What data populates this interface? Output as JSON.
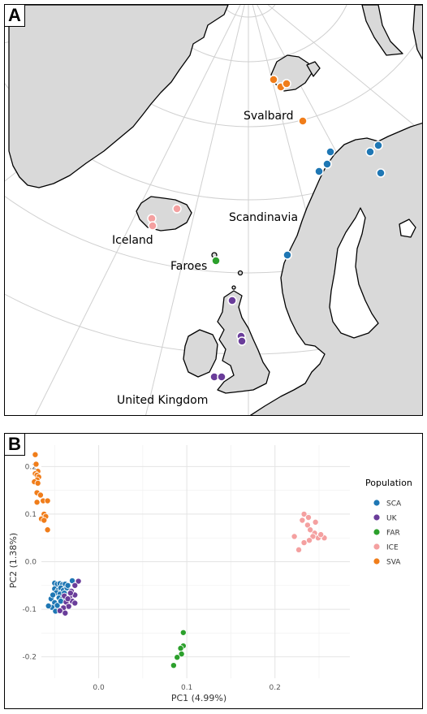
{
  "panel_a": {
    "tag": "A",
    "labels": {
      "svalbard": "Svalbard",
      "scandinavia": "Scandinavia",
      "iceland": "Iceland",
      "faroes": "Faroes",
      "uk": "United Kingdom"
    },
    "colors": {
      "land": "#d9d9d9",
      "sea": "#ffffff",
      "grid": "#d0d0d0",
      "coast": "#000000"
    }
  },
  "panel_b": {
    "tag": "B"
  },
  "chart_data": {
    "type": "scatter",
    "xlabel": "PC1 (4.99%)",
    "ylabel": "PC2 (1.38%)",
    "xlim": [
      -0.065,
      0.285
    ],
    "ylim": [
      -0.245,
      0.245
    ],
    "x_ticks": [
      0.0,
      0.1,
      0.2
    ],
    "x_tick_labels": [
      "0.0",
      "0.1",
      "0.2"
    ],
    "y_ticks": [
      -0.2,
      -0.1,
      0.0,
      0.1,
      0.2
    ],
    "y_tick_labels": [
      "-0.2",
      "-0.1",
      "0.0",
      "0.1",
      "0.2"
    ],
    "grid": true,
    "legend": {
      "title": "Population",
      "position": "right"
    },
    "series": [
      {
        "name": "SCA",
        "color": "#1f77b4",
        "points": [
          [
            -0.05,
            -0.045
          ],
          [
            -0.047,
            -0.047
          ],
          [
            -0.044,
            -0.046
          ],
          [
            -0.041,
            -0.048
          ],
          [
            -0.038,
            -0.047
          ],
          [
            -0.05,
            -0.057
          ],
          [
            -0.046,
            -0.06
          ],
          [
            -0.043,
            -0.055
          ],
          [
            -0.04,
            -0.06
          ],
          [
            -0.036,
            -0.055
          ],
          [
            -0.048,
            -0.065
          ],
          [
            -0.044,
            -0.068
          ],
          [
            -0.039,
            -0.066
          ],
          [
            -0.045,
            -0.076
          ],
          [
            -0.041,
            -0.078
          ],
          [
            -0.054,
            -0.078
          ],
          [
            -0.05,
            -0.086
          ],
          [
            -0.047,
            -0.092
          ],
          [
            -0.053,
            -0.096
          ],
          [
            -0.049,
            -0.104
          ],
          [
            -0.03,
            -0.04
          ],
          [
            -0.035,
            -0.05
          ],
          [
            -0.043,
            -0.083
          ],
          [
            -0.057,
            -0.093
          ],
          [
            -0.052,
            -0.07
          ]
        ]
      },
      {
        "name": "UK",
        "color": "#6a3d9a",
        "points": [
          [
            -0.023,
            -0.041
          ],
          [
            -0.027,
            -0.05
          ],
          [
            -0.031,
            -0.062
          ],
          [
            -0.027,
            -0.07
          ],
          [
            -0.033,
            -0.075
          ],
          [
            -0.03,
            -0.083
          ],
          [
            -0.037,
            -0.085
          ],
          [
            -0.027,
            -0.087
          ],
          [
            -0.034,
            -0.094
          ],
          [
            -0.04,
            -0.097
          ],
          [
            -0.044,
            -0.103
          ],
          [
            -0.038,
            -0.108
          ],
          [
            -0.032,
            -0.066
          ],
          [
            -0.039,
            -0.072
          ],
          [
            -0.035,
            -0.078
          ]
        ]
      },
      {
        "name": "FAR",
        "color": "#2ca02c",
        "points": [
          [
            0.096,
            -0.149
          ],
          [
            0.096,
            -0.177
          ],
          [
            0.093,
            -0.182
          ],
          [
            0.094,
            -0.194
          ],
          [
            0.089,
            -0.201
          ],
          [
            0.085,
            -0.218
          ]
        ]
      },
      {
        "name": "ICE",
        "color": "#f4a0a0",
        "points": [
          [
            0.233,
            0.1
          ],
          [
            0.238,
            0.093
          ],
          [
            0.231,
            0.087
          ],
          [
            0.237,
            0.077
          ],
          [
            0.246,
            0.083
          ],
          [
            0.256,
            0.05
          ],
          [
            0.249,
            0.05
          ],
          [
            0.252,
            0.057
          ],
          [
            0.245,
            0.06
          ],
          [
            0.24,
            0.067
          ],
          [
            0.243,
            0.053
          ],
          [
            0.233,
            0.04
          ],
          [
            0.239,
            0.045
          ],
          [
            0.222,
            0.053
          ],
          [
            0.227,
            0.025
          ]
        ]
      },
      {
        "name": "SVA",
        "color": "#f07d1a",
        "points": [
          [
            -0.072,
            0.225
          ],
          [
            -0.071,
            0.205
          ],
          [
            -0.069,
            0.19
          ],
          [
            -0.072,
            0.185
          ],
          [
            -0.07,
            0.182
          ],
          [
            -0.068,
            0.178
          ],
          [
            -0.07,
            0.172
          ],
          [
            -0.073,
            0.168
          ],
          [
            -0.069,
            0.165
          ],
          [
            -0.07,
            0.145
          ],
          [
            -0.066,
            0.14
          ],
          [
            -0.063,
            0.128
          ],
          [
            -0.058,
            0.128
          ],
          [
            -0.07,
            0.125
          ],
          [
            -0.062,
            0.1
          ],
          [
            -0.06,
            0.095
          ],
          [
            -0.065,
            0.09
          ],
          [
            -0.062,
            0.087
          ],
          [
            -0.058,
            0.067
          ]
        ]
      }
    ]
  }
}
